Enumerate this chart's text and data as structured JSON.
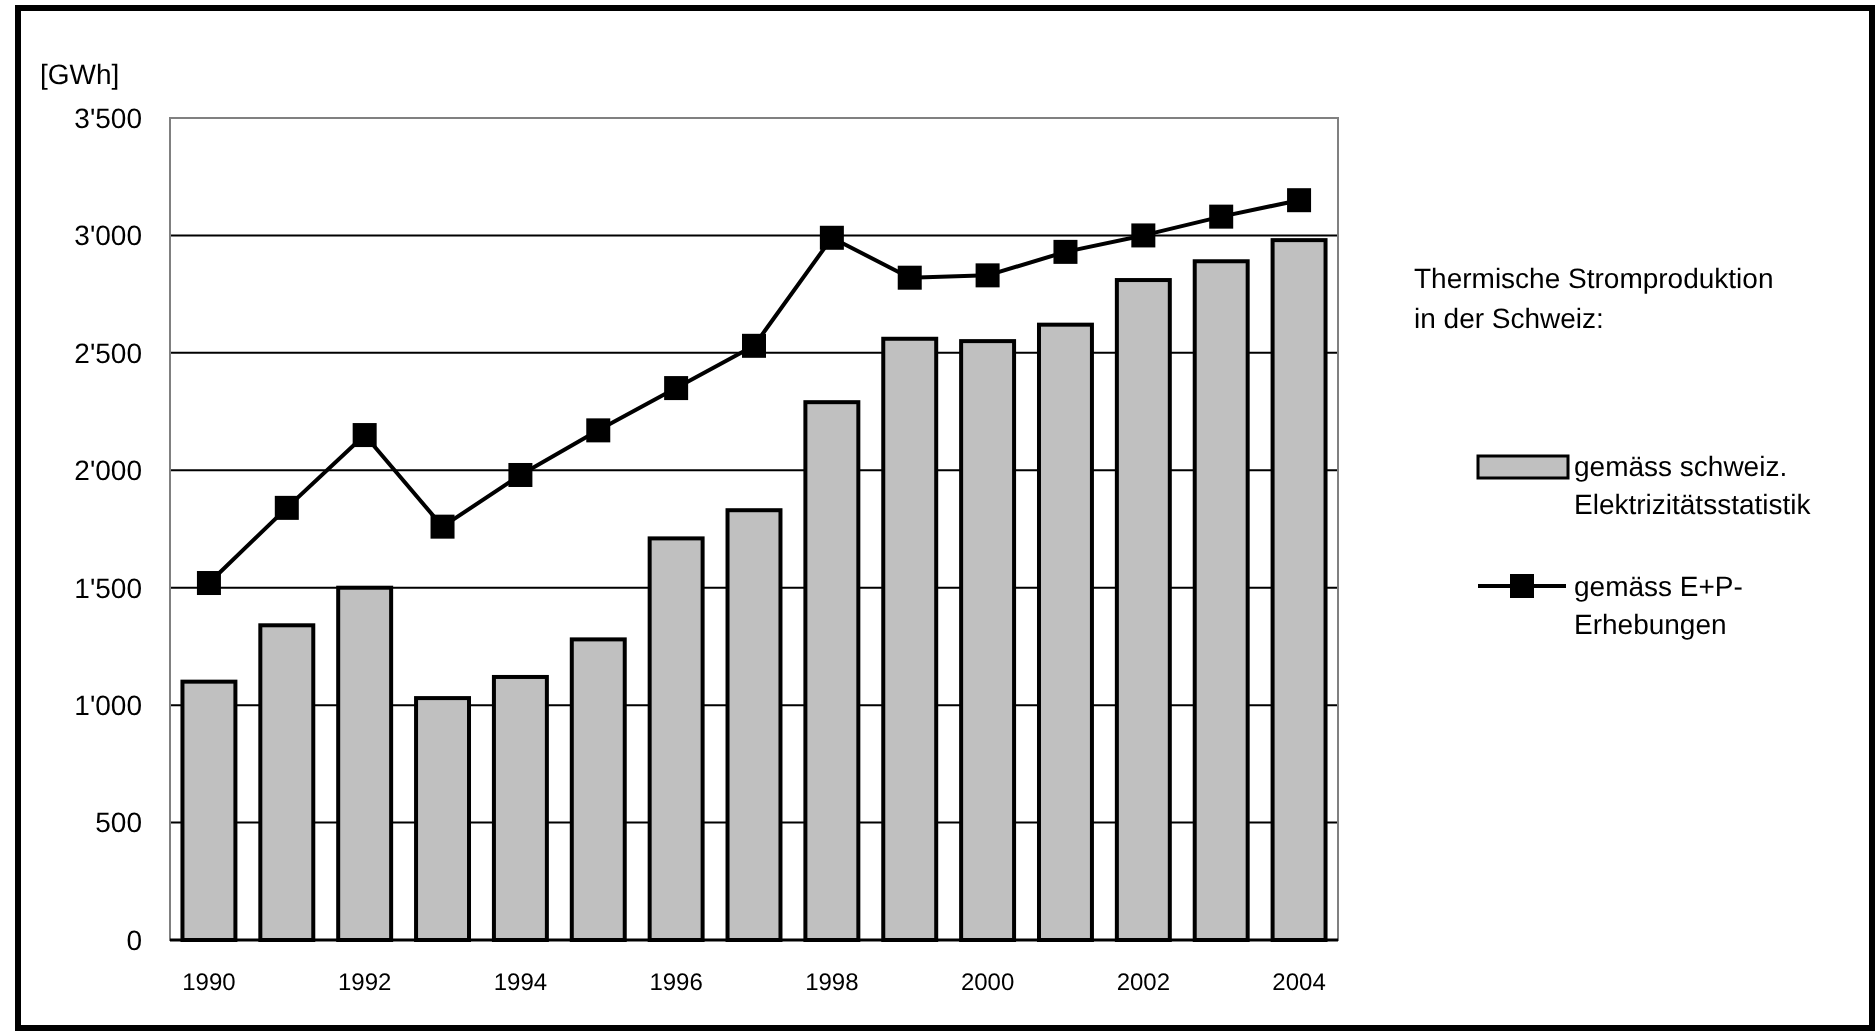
{
  "chart_data": {
    "type": "bar",
    "ylabel": "[GWh]",
    "legend_title": "Thermische Stromproduktion in der Schweiz:",
    "categories": [
      "1990",
      null,
      "1992",
      null,
      "1994",
      null,
      "1996",
      null,
      "1998",
      null,
      "2000",
      null,
      "2002",
      null,
      "2004"
    ],
    "series": [
      {
        "name": "gemäss schweiz. Elektrizitätsstatistik",
        "color": "#c0c0c0",
        "values": [
          1100,
          1340,
          1500,
          1030,
          1120,
          1280,
          1710,
          1830,
          2290,
          2560,
          2550,
          2620,
          2810,
          2890,
          2980
        ]
      },
      {
        "name": "gemäss E+P-Erhebungen",
        "type": "line",
        "color": "#000000",
        "marker": "square",
        "values": [
          1520,
          1840,
          2150,
          1760,
          1980,
          2170,
          2350,
          2530,
          2990,
          2820,
          2830,
          2930,
          3000,
          3080,
          3150
        ]
      }
    ],
    "ylim": [
      0,
      3500
    ],
    "yticks": [
      {
        "value": 0,
        "label": "0"
      },
      {
        "value": 500,
        "label": "500"
      },
      {
        "value": 1000,
        "label": "1'000"
      },
      {
        "value": 1500,
        "label": "1'500"
      },
      {
        "value": 2000,
        "label": "2'000"
      },
      {
        "value": 2500,
        "label": "2'500"
      },
      {
        "value": 3000,
        "label": "3'000"
      },
      {
        "value": 3500,
        "label": "3'500"
      }
    ],
    "grid": "y",
    "legend": "right"
  }
}
